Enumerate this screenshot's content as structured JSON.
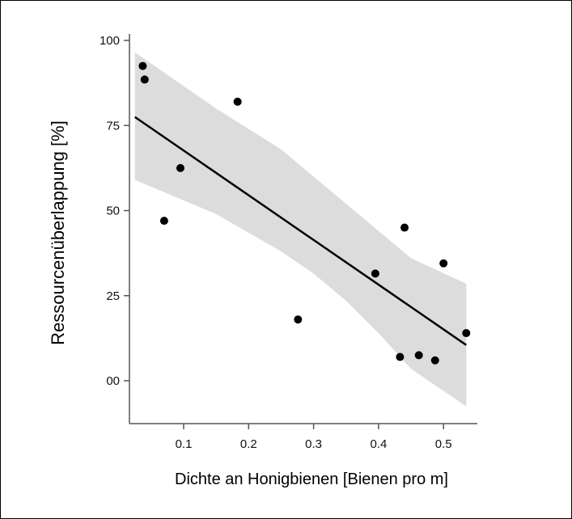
{
  "chart_data": {
    "type": "scatter",
    "title": "",
    "xlabel": "Dichte an Honigbienen [Bienen pro m]",
    "ylabel": "Ressourcenüberlappung [%]",
    "xlim": [
      0.0,
      0.55
    ],
    "ylim": [
      -13,
      101
    ],
    "x_ticks": [
      0.1,
      0.2,
      0.3,
      0.4,
      0.5
    ],
    "x_tick_labels": [
      "0.1",
      "0.2",
      "0.3",
      "0.4",
      "0.5"
    ],
    "y_ticks": [
      100,
      75,
      50,
      25,
      0
    ],
    "y_tick_labels": [
      "100",
      "75",
      "50",
      "25",
      "00"
    ],
    "grid": false,
    "series": [
      {
        "points": [
          {
            "x": 0.037,
            "y": 92.5
          },
          {
            "x": 0.04,
            "y": 88.5
          },
          {
            "x": 0.07,
            "y": 47.0
          },
          {
            "x": 0.095,
            "y": 62.5
          },
          {
            "x": 0.183,
            "y": 82.0
          },
          {
            "x": 0.276,
            "y": 18.0
          },
          {
            "x": 0.395,
            "y": 31.5
          },
          {
            "x": 0.433,
            "y": 7.0
          },
          {
            "x": 0.44,
            "y": 45.0
          },
          {
            "x": 0.462,
            "y": 7.5
          },
          {
            "x": 0.487,
            "y": 6.0
          },
          {
            "x": 0.5,
            "y": 34.5
          },
          {
            "x": 0.535,
            "y": 14.0
          }
        ]
      }
    ],
    "fit_line": {
      "x": [
        0.025,
        0.535
      ],
      "y": [
        77.5,
        10.5
      ]
    },
    "confidence_band": {
      "x": [
        0.025,
        0.15,
        0.25,
        0.3,
        0.35,
        0.4,
        0.45,
        0.535
      ],
      "upper": [
        96.5,
        80.0,
        68.0,
        60.0,
        52.0,
        44.0,
        36.0,
        28.5
      ],
      "lower": [
        59.0,
        49.0,
        38.0,
        31.5,
        23.5,
        14.0,
        3.5,
        -7.5
      ]
    },
    "colors": {
      "points": "#000000",
      "line": "#000000",
      "band": "#dcdcdc",
      "axis": "#555555"
    }
  }
}
